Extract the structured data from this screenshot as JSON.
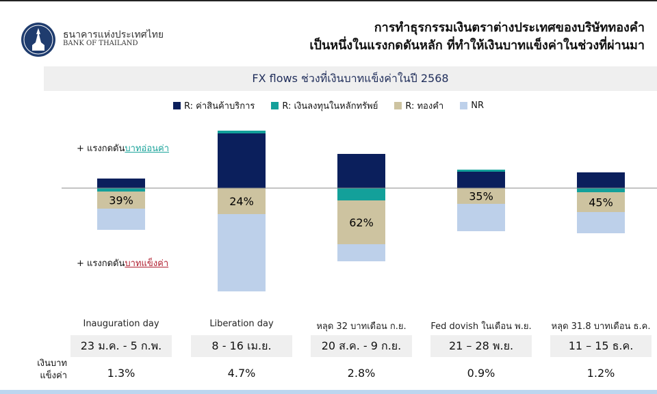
{
  "header": {
    "bank_name_th": "ธนาคารแห่งประเทศไทย",
    "bank_name_en": "BANK OF THAILAND",
    "title_line1": "การทำธุรกรรมเงินตราต่างประเทศของบริษัททองคำ",
    "title_line2": "เป็นหนึ่งในแรงกดดันหลัก ที่ทำให้เงินบาทแข็งค่าในช่วงที่ผ่านมา"
  },
  "chart_data": {
    "type": "bar",
    "stacked": true,
    "title": "FX flows ช่วงที่เงินบาทแข็งค่าในปี 2568",
    "units_note": "no axis printed; values are relative magnitudes, positive = above centre line",
    "categories": [
      "Inauguration day",
      "Liberation day",
      "หลุด 32 บาทเดือน ก.ย.",
      "Fed dovish ในเดือน พ.ย.",
      "หลุด 31.8 บาทเดือน ธ.ค."
    ],
    "series": [
      {
        "name": "R: ค่าสินค้าบริการ",
        "color": "#0b1f5c",
        "values": [
          14,
          80,
          50,
          24,
          23
        ]
      },
      {
        "name": "R: เงินลงทุนในหลักทรัพย์",
        "color": "#13a09a",
        "values": [
          -5,
          4,
          -18,
          3,
          -6
        ]
      },
      {
        "name": "R: ทองคำ",
        "color": "#cdc3a0",
        "values": [
          -25,
          -38,
          -64,
          -23,
          -29
        ]
      },
      {
        "name": "NR",
        "color": "#bdd0ea",
        "values": [
          -31,
          -113,
          -25,
          -40,
          -31
        ]
      }
    ],
    "gold_share_labels": [
      "39%",
      "24%",
      "62%",
      "35%",
      "45%"
    ],
    "legend_position": "top",
    "grid": false,
    "annotations": {
      "up_prefix": "+ แรงกดดัน",
      "up_emph": "บาทอ่อนค่า",
      "down_prefix": "+ แรงกดดัน",
      "down_emph": "บาทแข็งค่า"
    }
  },
  "table": {
    "row_label_line1": "เงินบาท",
    "row_label_line2": "แข็งค่า",
    "dates": [
      "23 ม.ค. - 5 ก.พ.",
      "8 - 16 เม.ย.",
      "20 ส.ค. - 9 ก.ย.",
      "21 – 28 พ.ย.",
      "11 – 15 ธ.ค."
    ],
    "appreciation": [
      "1.3%",
      "4.7%",
      "2.8%",
      "0.9%",
      "1.2%"
    ]
  }
}
